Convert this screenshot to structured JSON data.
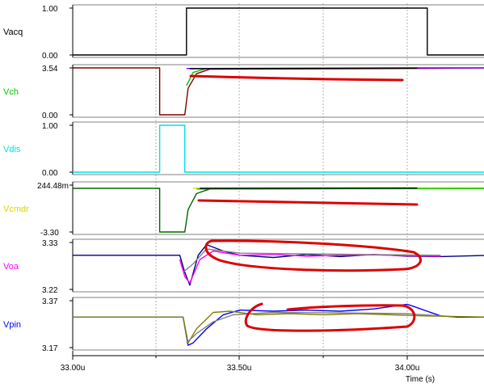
{
  "chart_data": {
    "type": "line",
    "xlabel": "Time (s)",
    "x_ticks": [
      "33.00u",
      "33.50u",
      "34.00u"
    ],
    "xlim": [
      33.0,
      34.25
    ],
    "panels": [
      {
        "name": "Vacq",
        "color": "#000000",
        "ylim": [
          0,
          1
        ],
        "y_ticks": [
          "0.00",
          "1.00"
        ],
        "series": [
          {
            "color": "#000000",
            "x": [
              33.0,
              33.34,
              33.34,
              34.06,
              34.06,
              34.25
            ],
            "y": [
              0,
              0,
              1,
              1,
              0,
              0
            ]
          }
        ]
      },
      {
        "name": "Vch",
        "color": "#00c800",
        "ylim": [
          0,
          3.54
        ],
        "y_ticks": [
          "0.00",
          "3.54"
        ],
        "series": [
          {
            "color": "#800000",
            "x": [
              33.0,
              33.26,
              33.26,
              33.335,
              33.345,
              33.37,
              33.41,
              34.03,
              34.25
            ],
            "y": [
              3.54,
              3.54,
              0,
              0,
              2.0,
              3.1,
              3.45,
              3.5,
              3.54
            ]
          },
          {
            "color": "#00c800",
            "x": [
              33.34,
              33.36,
              33.4,
              34.03,
              34.25
            ],
            "y": [
              2.2,
              3.2,
              3.5,
              3.55,
              3.54
            ]
          },
          {
            "color": "#8000ff",
            "x": [
              33.34,
              34.25
            ],
            "y": [
              3.5,
              3.54
            ]
          },
          {
            "color": "#000000",
            "x": [
              33.35,
              34.03
            ],
            "y": [
              3.48,
              3.52
            ]
          }
        ]
      },
      {
        "name": "Vdis",
        "color": "#00e0e0",
        "ylim": [
          0,
          1
        ],
        "y_ticks": [
          "0.00",
          "1.00"
        ],
        "series": [
          {
            "color": "#00e0e0",
            "x": [
              33.0,
              33.26,
              33.26,
              33.335,
              33.335,
              34.25
            ],
            "y": [
              0,
              0,
              1,
              1,
              0,
              0
            ]
          }
        ]
      },
      {
        "name": "Vcmdr",
        "color": "#e0e000",
        "ylim": [
          -3.3,
          0.24448
        ],
        "y_ticks": [
          "-3.30",
          "244.48m"
        ],
        "series": [
          {
            "color": "#006400",
            "x": [
              33.0,
              33.26,
              33.26,
              33.335,
              33.345,
              33.37,
              33.41,
              34.03,
              34.25
            ],
            "y": [
              0.0,
              0.0,
              -3.3,
              -3.3,
              -1.6,
              -0.4,
              -0.05,
              0.0,
              0.0
            ]
          },
          {
            "color": "#e0e000",
            "x": [
              33.36,
              34.25
            ],
            "y": [
              0.02,
              0.05
            ]
          },
          {
            "color": "#00c800",
            "x": [
              33.37,
              34.25
            ],
            "y": [
              -0.05,
              -0.02
            ]
          },
          {
            "color": "#000000",
            "x": [
              33.38,
              34.03
            ],
            "y": [
              0.0,
              0.02
            ]
          }
        ]
      },
      {
        "name": "Voa",
        "color": "#ff00ff",
        "ylim": [
          3.22,
          3.33
        ],
        "y_ticks": [
          "3.22",
          "3.33"
        ],
        "series": [
          {
            "color": "#000080",
            "x": [
              33.0,
              33.32,
              33.335,
              33.35,
              33.375,
              33.4,
              33.45,
              33.5,
              33.6,
              33.7,
              33.8,
              33.9,
              34.0,
              34.1,
              34.25
            ],
            "y": [
              3.3,
              3.3,
              3.26,
              3.23,
              3.3,
              3.325,
              3.31,
              3.3,
              3.295,
              3.302,
              3.297,
              3.302,
              3.298,
              3.297,
              3.3
            ]
          },
          {
            "color": "#ff00ff",
            "x": [
              33.32,
              33.335,
              33.35,
              33.38,
              33.42,
              33.5,
              33.6,
              33.7,
              33.8,
              33.9,
              34.0,
              34.1
            ],
            "y": [
              3.29,
              3.25,
              3.235,
              3.29,
              3.31,
              3.3,
              3.302,
              3.298,
              3.3,
              3.301,
              3.299,
              3.298
            ]
          },
          {
            "color": "#808080",
            "x": [
              33.33,
              33.36,
              33.4,
              33.5,
              34.1
            ],
            "y": [
              3.26,
              3.28,
              3.315,
              3.305,
              3.3
            ]
          }
        ]
      },
      {
        "name": "Vpin",
        "color": "#0000ff",
        "ylim": [
          3.17,
          3.37
        ],
        "y_ticks": [
          "3.17",
          "3.37"
        ],
        "series": [
          {
            "color": "#0000ff",
            "x": [
              33.0,
              33.33,
              33.345,
              33.36,
              33.4,
              33.45,
              33.5,
              33.6,
              33.7,
              33.8,
              33.9,
              34.0,
              34.05,
              34.1,
              34.15,
              34.25
            ],
            "y": [
              3.3,
              3.3,
              3.18,
              3.19,
              3.25,
              3.31,
              3.33,
              3.325,
              3.33,
              3.325,
              3.335,
              3.355,
              3.33,
              3.305,
              3.3,
              3.3
            ]
          },
          {
            "color": "#808000",
            "x": [
              33.0,
              33.33,
              33.345,
              33.37,
              33.42,
              33.47,
              33.55,
              33.65,
              33.75,
              33.85,
              33.95,
              34.05,
              34.25
            ],
            "y": [
              3.3,
              3.3,
              3.19,
              3.25,
              3.32,
              3.325,
              3.31,
              3.315,
              3.31,
              3.315,
              3.31,
              3.305,
              3.3
            ]
          },
          {
            "color": "#808080",
            "x": [
              33.34,
              33.37,
              33.42,
              33.48,
              33.6,
              33.8,
              34.0,
              34.1
            ],
            "y": [
              3.19,
              3.23,
              3.28,
              3.31,
              3.32,
              3.318,
              3.315,
              3.305
            ]
          }
        ]
      }
    ],
    "annotation_color": "#dd0000"
  }
}
